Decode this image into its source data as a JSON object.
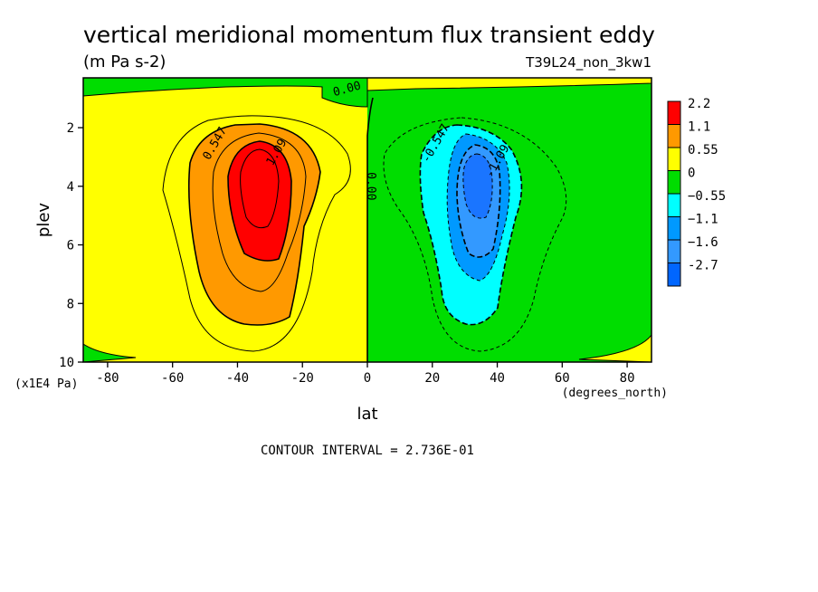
{
  "chart_data": {
    "type": "heatmap",
    "title": "vertical meridional momentum flux transient eddy",
    "subtitle": "(m Pa s-2)",
    "run_label": "T39L24_non_3kw1",
    "xlabel": "lat",
    "x_unit_label": "(degrees_north)",
    "ylabel": "plev",
    "y_unit_label": "(x1E4 Pa)",
    "footer": "CONTOUR INTERVAL = 2.736E-01",
    "xlim": [
      -87.5,
      87.5
    ],
    "ylim": [
      10,
      0.3
    ],
    "x_ticks": [
      -80,
      -60,
      -40,
      -20,
      0,
      20,
      40,
      60,
      80
    ],
    "y_ticks": [
      2,
      4,
      6,
      8,
      10
    ],
    "contour_labels": [
      {
        "text": "0.00",
        "lat": -6,
        "plev": 0.8
      },
      {
        "text": "0.547",
        "lat": -46,
        "plev": 2.6
      },
      {
        "text": "1.09",
        "lat": -27,
        "plev": 2.9
      },
      {
        "text": "0.00",
        "lat": 0,
        "plev": 4.0
      },
      {
        "text": "-0.547",
        "lat": 22,
        "plev": 2.6
      },
      {
        "text": "-1.09",
        "lat": 41,
        "plev": 3.2
      }
    ],
    "legend": [
      {
        "label": "2.2",
        "color": "#ff0000"
      },
      {
        "label": "1.1",
        "color": "#ff9900"
      },
      {
        "label": "0.55",
        "color": "#ffff00"
      },
      {
        "label": "0",
        "color": "#00dd00"
      },
      {
        "label": "−0.55",
        "color": "#00ffff"
      },
      {
        "label": "−1.1",
        "color": "#0099ff"
      },
      {
        "label": "−1.6",
        "color": "#3399ff"
      },
      {
        "label": "-2.7",
        "color": "#0066ff"
      }
    ],
    "legend_placement": "right",
    "series": [
      {
        "feature": "positive maximum (southern hemisphere)",
        "lat": -33,
        "plev": 4.0,
        "value": 1.64
      },
      {
        "feature": "negative minimum (northern hemisphere)",
        "lat": 33,
        "plev": 4.0,
        "value": -1.37
      }
    ]
  }
}
